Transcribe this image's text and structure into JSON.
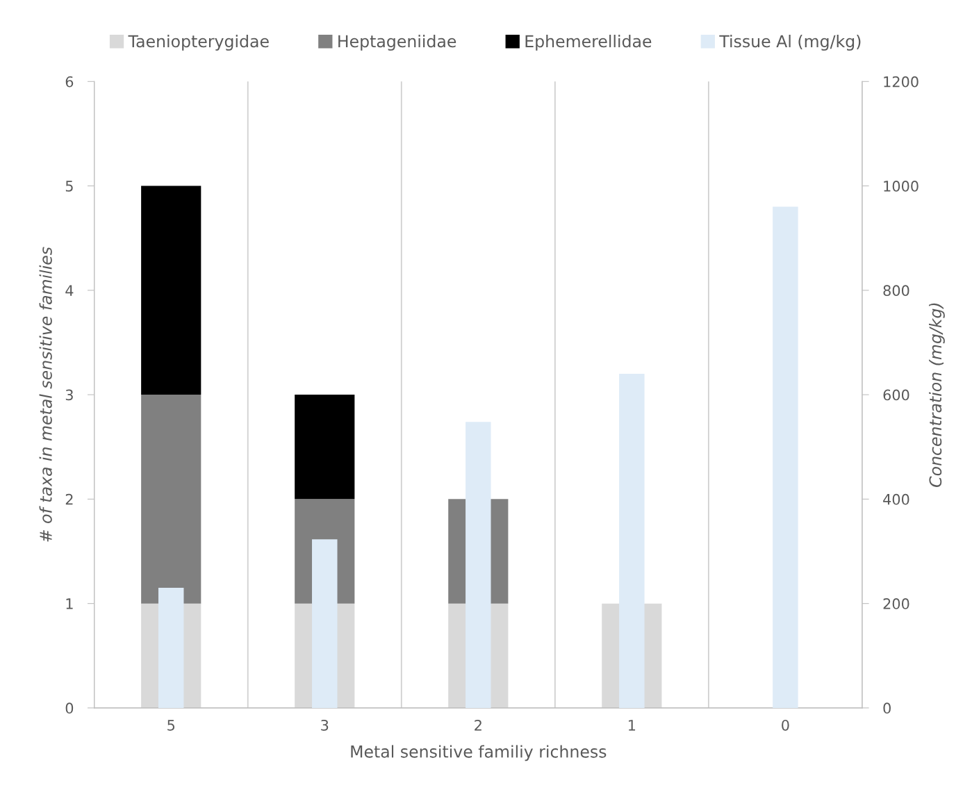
{
  "chart_data": {
    "type": "bar",
    "stacked": true,
    "xlabel": "Metal sensitive familiy richness",
    "ylabel": "# of taxa in metal sensitive families",
    "y2label": "Concentration (mg/kg)",
    "categories": [
      "5",
      "3",
      "2",
      "1",
      "0"
    ],
    "series": [
      {
        "name": "Taeniopterygidae",
        "color": "#d9d9d9",
        "values": [
          1,
          1,
          1,
          1,
          0
        ]
      },
      {
        "name": "Heptageniidae",
        "color": "#808080",
        "values": [
          2,
          1,
          1,
          0,
          0
        ]
      },
      {
        "name": "Ephemerellidae",
        "color": "#000000",
        "values": [
          2,
          1,
          0,
          0,
          0
        ]
      },
      {
        "name": "Tissue Al (mg/kg)",
        "color": "#deebf7",
        "axis": "y2",
        "values": [
          230,
          323,
          548,
          640,
          960
        ]
      }
    ],
    "ylim": [
      0,
      6
    ],
    "yticks": [
      0,
      1,
      2,
      3,
      4,
      5,
      6
    ],
    "y2lim": [
      0,
      1200
    ],
    "y2ticks": [
      0,
      200,
      400,
      600,
      800,
      1000,
      1200
    ],
    "grid": "x",
    "legend": "top"
  }
}
